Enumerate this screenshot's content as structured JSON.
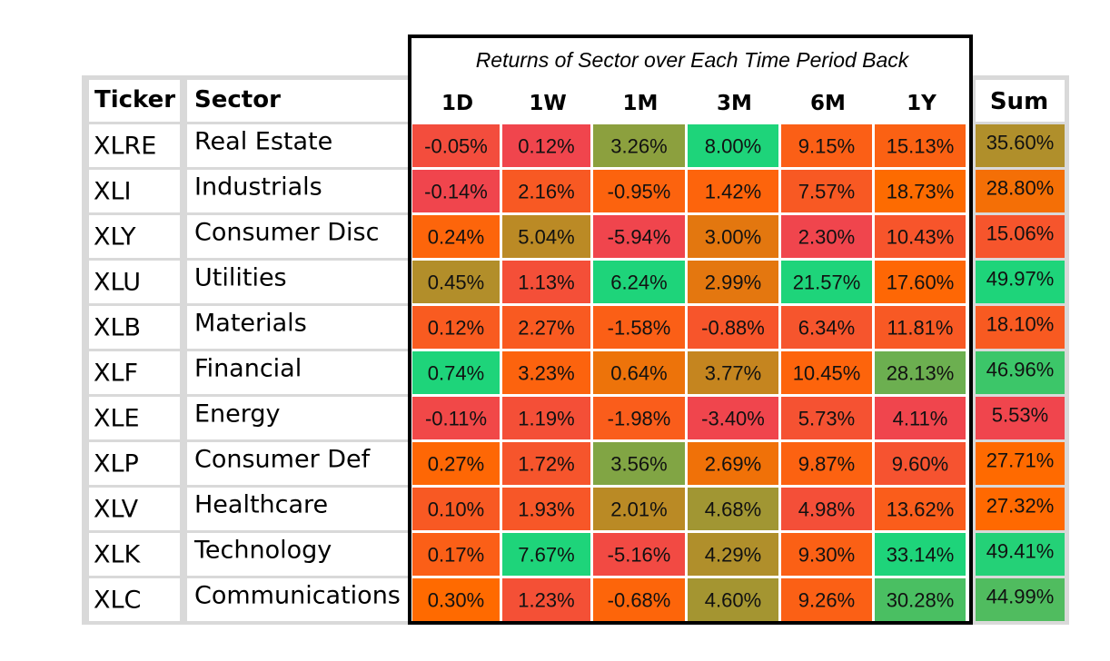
{
  "chart_data": {
    "type": "heatmap",
    "title": "Returns of Sector over Each Time Period Back",
    "ticker_header": "Ticker",
    "sector_header": "Sector",
    "sum_header": "Sum",
    "columns": [
      "1D",
      "1W",
      "1M",
      "3M",
      "6M",
      "1Y"
    ],
    "rows": [
      {
        "ticker": "XLRE",
        "sector": "Real Estate",
        "values": [
          "-0.05%",
          "0.12%",
          "3.26%",
          "8.00%",
          "9.15%",
          "15.13%"
        ],
        "sum": "35.60%"
      },
      {
        "ticker": "XLI",
        "sector": "Industrials",
        "values": [
          "-0.14%",
          "2.16%",
          "-0.95%",
          "1.42%",
          "7.57%",
          "18.73%"
        ],
        "sum": "28.80%"
      },
      {
        "ticker": "XLY",
        "sector": "Consumer Disc",
        "values": [
          "0.24%",
          "5.04%",
          "-5.94%",
          "3.00%",
          "2.30%",
          "10.43%"
        ],
        "sum": "15.06%"
      },
      {
        "ticker": "XLU",
        "sector": "Utilities",
        "values": [
          "0.45%",
          "1.13%",
          "6.24%",
          "2.99%",
          "21.57%",
          "17.60%"
        ],
        "sum": "49.97%"
      },
      {
        "ticker": "XLB",
        "sector": "Materials",
        "values": [
          "0.12%",
          "2.27%",
          "-1.58%",
          "-0.88%",
          "6.34%",
          "11.81%"
        ],
        "sum": "18.10%"
      },
      {
        "ticker": "XLF",
        "sector": "Financial",
        "values": [
          "0.74%",
          "3.23%",
          "0.64%",
          "3.77%",
          "10.45%",
          "28.13%"
        ],
        "sum": "46.96%"
      },
      {
        "ticker": "XLE",
        "sector": "Energy",
        "values": [
          "-0.11%",
          "1.19%",
          "-1.98%",
          "-3.40%",
          "5.73%",
          "4.11%"
        ],
        "sum": "5.53%"
      },
      {
        "ticker": "XLP",
        "sector": "Consumer Def",
        "values": [
          "0.27%",
          "1.72%",
          "3.56%",
          "2.69%",
          "9.87%",
          "9.60%"
        ],
        "sum": "27.71%"
      },
      {
        "ticker": "XLV",
        "sector": "Healthcare",
        "values": [
          "0.10%",
          "1.93%",
          "2.01%",
          "4.68%",
          "4.98%",
          "13.62%"
        ],
        "sum": "27.32%"
      },
      {
        "ticker": "XLK",
        "sector": "Technology",
        "values": [
          "0.17%",
          "7.67%",
          "-5.16%",
          "4.29%",
          "9.30%",
          "33.14%"
        ],
        "sum": "49.41%"
      },
      {
        "ticker": "XLC",
        "sector": "Communications",
        "values": [
          "0.30%",
          "1.23%",
          "-0.68%",
          "4.60%",
          "9.26%",
          "30.28%"
        ],
        "sum": "44.99%"
      }
    ],
    "colors": {
      "grid_gray": "#d9d9d9",
      "frame": "#000000",
      "scale_low": "#f0454d",
      "scale_mid": "#ff6a00",
      "scale_high": "#1ed47a"
    }
  }
}
